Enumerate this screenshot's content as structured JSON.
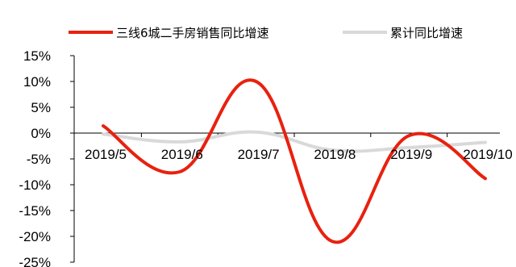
{
  "chart_data": {
    "type": "line",
    "categories": [
      "2019/5",
      "2019/6",
      "2019/7",
      "2019/8",
      "2019/9",
      "2019/10"
    ],
    "series": [
      {
        "name": "三线6城二手房销售同比增速",
        "color": "#e8210f",
        "values": [
          1.4,
          -7.5,
          10.0,
          -21.0,
          -0.5,
          -8.8
        ]
      },
      {
        "name": "累计同比增速",
        "color": "#d9d9d9",
        "values": [
          -0.2,
          -1.7,
          0.2,
          -3.3,
          -2.8,
          -1.8
        ]
      }
    ],
    "y_ticks": [
      "15%",
      "10%",
      "5%",
      "0%",
      "-5%",
      "-10%",
      "-15%",
      "-20%",
      "-25%"
    ],
    "ylim": [
      -25,
      15
    ],
    "grid": false,
    "legend": "top",
    "smooth": true
  }
}
